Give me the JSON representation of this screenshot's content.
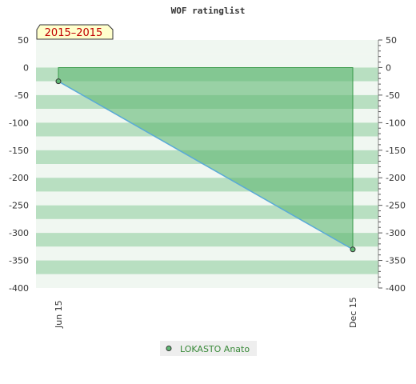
{
  "chart_data": {
    "type": "area",
    "title": "WOF ratinglist",
    "period_label": "2015–2015",
    "x_categories": [
      "Jun 15",
      "Dec 15"
    ],
    "series": [
      {
        "name": "LOKASTO Anato",
        "values": [
          -25,
          -330
        ]
      }
    ],
    "ylim": [
      -400,
      50
    ],
    "y_ticks": [
      50,
      0,
      -50,
      -100,
      -150,
      -200,
      -250,
      -300,
      -350,
      -400
    ],
    "fill_baseline": 0,
    "grid": true,
    "legend_position": "bottom",
    "colors": {
      "line": "#5aaad8",
      "area_fill": "#5fb873",
      "area_stroke": "#3a9a4a",
      "marker": "#5fb873",
      "band_light": "#f0f7f1",
      "band_dark": "#b8dfc1",
      "period_bg": "#ffffcc"
    }
  }
}
